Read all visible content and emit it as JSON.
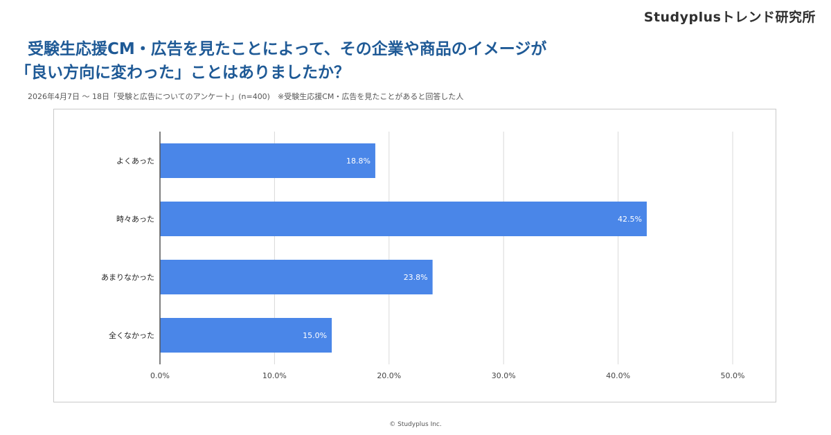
{
  "brand": "Studyplusトレンド研究所",
  "title": {
    "line1": "受験生応援CM・広告を見たことによって、その企業や商品のイメージが",
    "line2": "「良い方向に変わった」ことはありましたか？"
  },
  "subtitle": "2026年4月7日 〜 18日「受験と広告についてのアンケート」(n=400)　※受験生応援CM・広告を見たことがあると回答した人",
  "footer": "© Studyplus Inc.",
  "chart_data": {
    "type": "bar",
    "orientation": "horizontal",
    "categories": [
      "よくあった",
      "時々あった",
      "あまりなかった",
      "全くなかった"
    ],
    "values": [
      18.8,
      42.5,
      23.8,
      15.0
    ],
    "data_labels": [
      "18.8%",
      "42.5%",
      "23.8%",
      "15.0%"
    ],
    "xlim": [
      0,
      50
    ],
    "xticks": [
      0,
      10,
      20,
      30,
      40,
      50
    ],
    "xtick_labels": [
      "0.0%",
      "10.0%",
      "20.0%",
      "30.0%",
      "40.0%",
      "50.0%"
    ],
    "grid": true,
    "bar_color": "#4a86e8",
    "label_color": "#ffffff",
    "title": "",
    "xlabel": "",
    "ylabel": ""
  }
}
